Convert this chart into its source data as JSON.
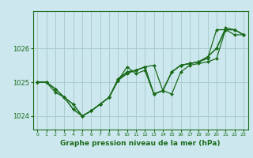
{
  "title": "Graphe pression niveau de la mer (hPa)",
  "background_color": "#cce8ee",
  "grid_color": "#aacccc",
  "line_color": "#1a6b1a",
  "marker_color": "#1a6b1a",
  "xlim": [
    -0.5,
    23.5
  ],
  "ylim": [
    1023.6,
    1027.1
  ],
  "xticks": [
    0,
    1,
    2,
    3,
    4,
    5,
    6,
    7,
    8,
    9,
    10,
    11,
    12,
    13,
    14,
    15,
    16,
    17,
    18,
    19,
    20,
    21,
    22,
    23
  ],
  "yticks": [
    1024,
    1025,
    1026
  ],
  "series": [
    [
      1025.0,
      1025.0,
      1024.8,
      1024.55,
      1024.35,
      1024.0,
      1024.15,
      1024.35,
      1024.55,
      1025.05,
      1025.25,
      1025.35,
      1025.45,
      1025.5,
      1024.75,
      1024.65,
      1025.3,
      1025.5,
      1025.55,
      1025.6,
      1025.7,
      1026.55,
      1026.55,
      1026.4
    ],
    [
      1025.0,
      1025.0,
      1024.8,
      1024.55,
      1024.35,
      1024.0,
      1024.15,
      1024.35,
      1024.55,
      1025.05,
      1025.45,
      1025.25,
      1025.35,
      1024.65,
      1024.75,
      1025.3,
      1025.5,
      1025.55,
      1025.6,
      1025.7,
      1026.55,
      1026.55,
      1026.4,
      1026.4
    ],
    [
      1025.0,
      1025.0,
      1024.8,
      1024.55,
      1024.2,
      1024.0,
      1024.15,
      1024.35,
      1024.55,
      1025.05,
      1025.3,
      1025.35,
      1025.45,
      1024.65,
      1024.75,
      1025.3,
      1025.5,
      1025.55,
      1025.6,
      1025.75,
      1026.0,
      1026.55,
      1026.55,
      1026.4
    ],
    [
      1025.0,
      1025.0,
      1024.7,
      1024.55,
      1024.2,
      1024.0,
      1024.15,
      1024.35,
      1024.55,
      1025.1,
      1025.3,
      1025.35,
      1025.45,
      1024.65,
      1024.75,
      1025.3,
      1025.5,
      1025.55,
      1025.6,
      1025.75,
      1026.0,
      1026.6,
      1026.55,
      1026.4
    ]
  ],
  "figsize": [
    3.2,
    2.0
  ],
  "dpi": 100,
  "xlabel_fontsize": 6.5,
  "ytick_fontsize": 6,
  "xtick_fontsize": 4.5,
  "linewidth": 0.9,
  "markersize": 2.0
}
